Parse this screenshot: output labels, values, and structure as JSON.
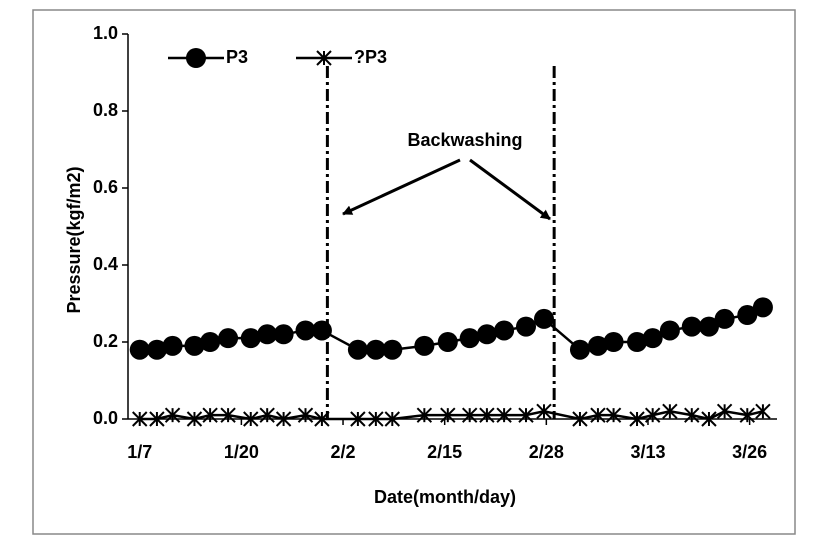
{
  "chart_data": {
    "type": "line",
    "x_label": "Date(month/day)",
    "y_label": "Pressure(kgf/m2)",
    "annotation": "Backwashing",
    "x": [
      7,
      9.2,
      11.2,
      14,
      16,
      18.3,
      21.2,
      23.3,
      25.4,
      28.2,
      30.3,
      34.9,
      37.2,
      39.3,
      43.4,
      46.4,
      49.2,
      51.4,
      53.6,
      56.4,
      58.7,
      63.3,
      65.6,
      67.6,
      70.6,
      72.6,
      74.8,
      77.6,
      79.8,
      81.8,
      84.7,
      86.7
    ],
    "series": [
      {
        "name": "P3",
        "color": "#000000",
        "marker": "circle",
        "values": [
          0.18,
          0.18,
          0.19,
          0.19,
          0.2,
          0.21,
          0.21,
          0.22,
          0.22,
          0.23,
          0.23,
          0.18,
          0.18,
          0.18,
          0.19,
          0.2,
          0.21,
          0.22,
          0.23,
          0.24,
          0.26,
          0.18,
          0.19,
          0.2,
          0.2,
          0.21,
          0.23,
          0.24,
          0.24,
          0.26,
          0.27,
          0.29
        ]
      },
      {
        "name": "?P3",
        "color": "#000000",
        "marker": "asterisk",
        "values": [
          0,
          0,
          0.01,
          0,
          0.01,
          0.01,
          0,
          0.01,
          0,
          0.01,
          0,
          0,
          0,
          0,
          0.01,
          0.01,
          0.01,
          0.01,
          0.01,
          0.01,
          0.02,
          0,
          0.01,
          0.01,
          0,
          0.01,
          0.02,
          0.01,
          0,
          0.02,
          0.01,
          0.02
        ]
      }
    ],
    "vlines": [
      31,
      60
    ],
    "xlim": [
      5.5,
      88.5
    ],
    "xticks": [
      {
        "value": 7,
        "label": "1/7"
      },
      {
        "value": 20,
        "label": "1/20"
      },
      {
        "value": 33,
        "label": "2/2"
      },
      {
        "value": 46,
        "label": "2/15"
      },
      {
        "value": 59,
        "label": "2/28"
      },
      {
        "value": 72,
        "label": "3/13"
      },
      {
        "value": 85,
        "label": "3/26"
      }
    ],
    "ylim": [
      0,
      1
    ],
    "yticks": [
      {
        "value": 0,
        "label": "0.0"
      },
      {
        "value": 0.2,
        "label": "0.2"
      },
      {
        "value": 0.4,
        "label": "0.4"
      },
      {
        "value": 0.6,
        "label": "0.6"
      },
      {
        "value": 0.8,
        "label": "0.8"
      },
      {
        "value": 1,
        "label": "1.0"
      }
    ],
    "legend": "top-left"
  }
}
